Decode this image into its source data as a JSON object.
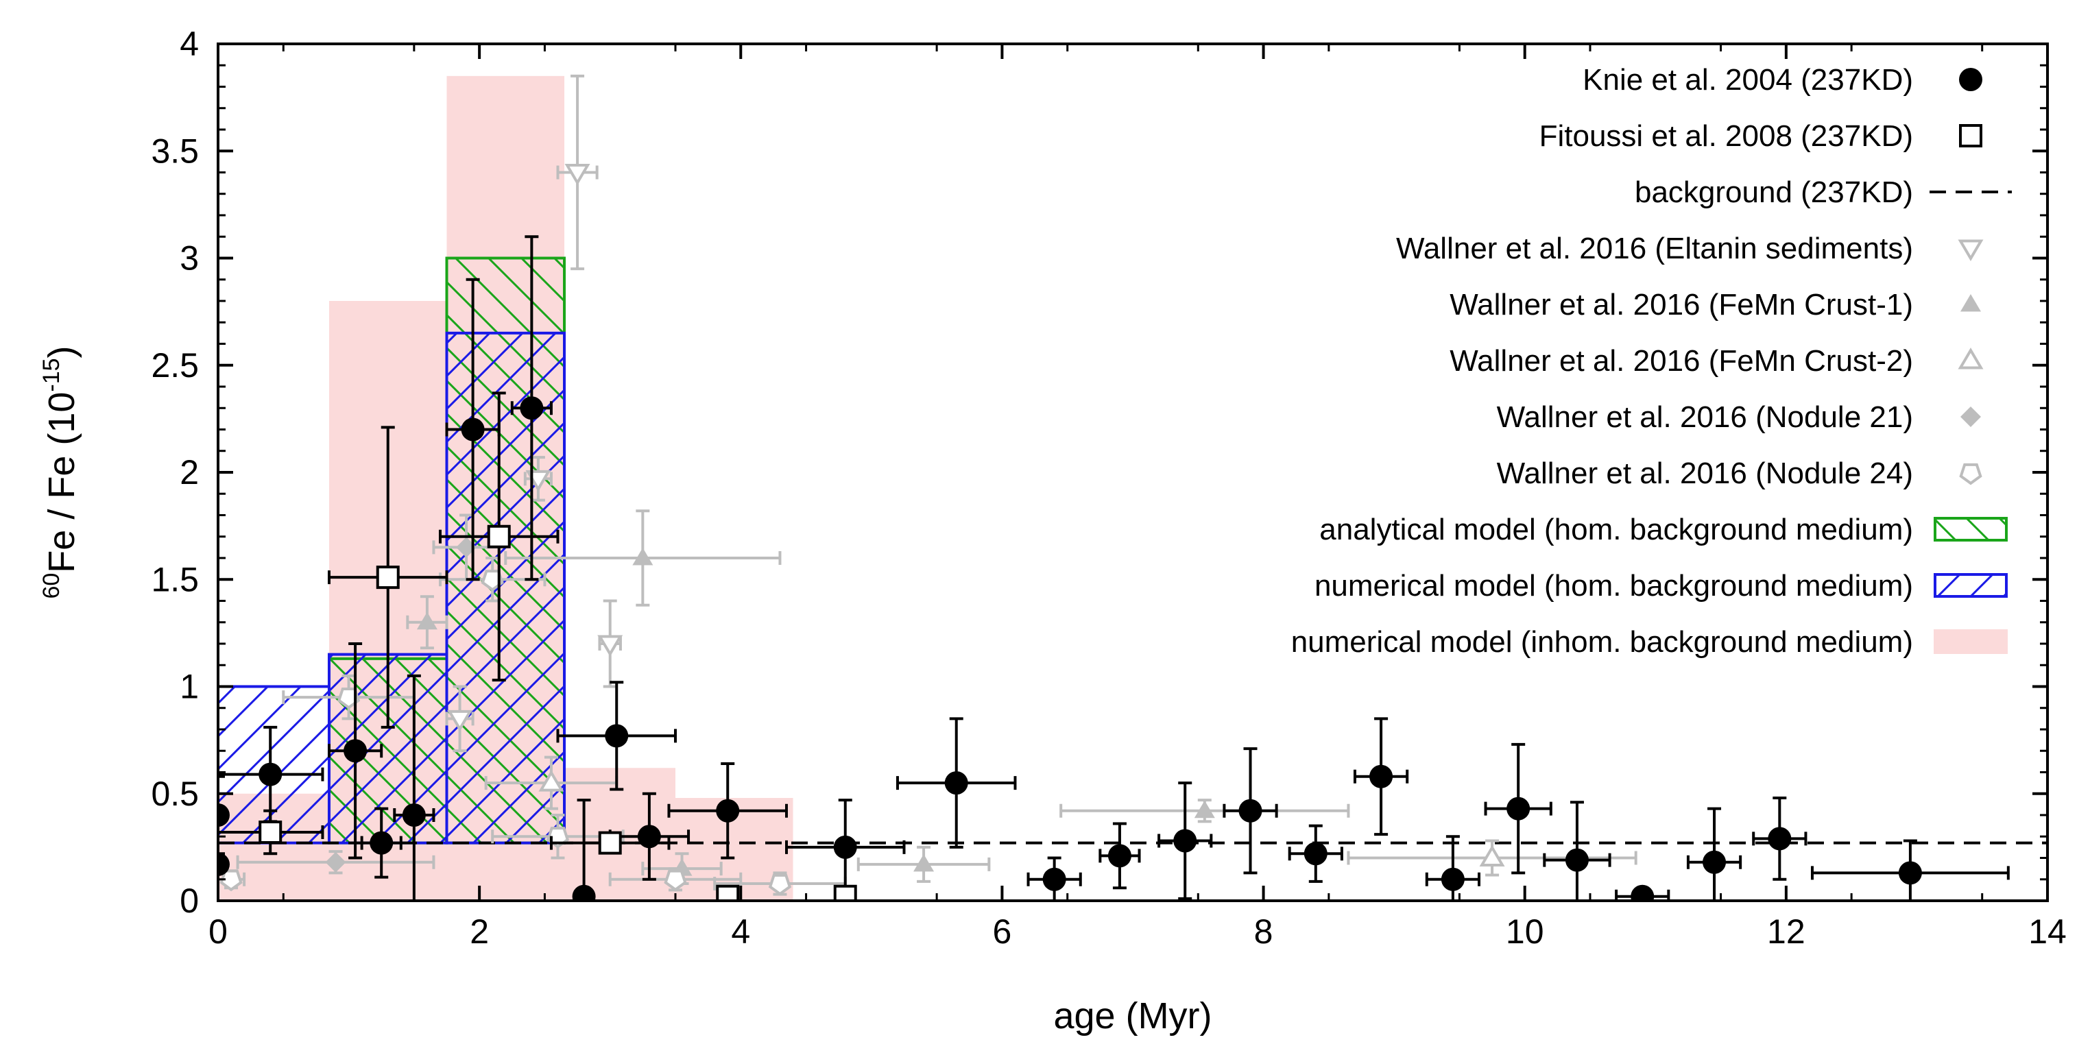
{
  "chart_data": {
    "type": "scatter",
    "xlabel": "age (Myr)",
    "ylabel": {
      "sup": "60",
      "main": "Fe / Fe (10",
      "exp": "-15",
      "close": ")"
    },
    "xlim": [
      0,
      14
    ],
    "ylim": [
      0,
      4
    ],
    "xticks": [
      0,
      2,
      4,
      6,
      8,
      10,
      12,
      14
    ],
    "xtick_labels": [
      "0",
      "2",
      "4",
      "6",
      "8",
      "10",
      "12",
      "14"
    ],
    "yticks": [
      0,
      0.5,
      1,
      1.5,
      2,
      2.5,
      3,
      3.5,
      4
    ],
    "ytick_labels": [
      "0",
      "0.5",
      "1",
      "1.5",
      "2",
      "2.5",
      "3",
      "3.5",
      "4"
    ],
    "grid": false,
    "legend_position": "top-right",
    "colors": {
      "black": "#000000",
      "gray": "#bdbdbd",
      "green": "#1aa51a",
      "blue": "#1a1ae6",
      "pink": "#fbdada"
    },
    "legend": [
      "Knie et al. 2004 (237KD)",
      "Fitoussi et al. 2008 (237KD)",
      "background (237KD)",
      "Wallner et al. 2016 (Eltanin sediments)",
      "Wallner et al. 2016 (FeMn Crust-1)",
      "Wallner et al. 2016 (FeMn Crust-2)",
      "Wallner et al. 2016 (Nodule 21)",
      "Wallner et al. 2016 (Nodule 24)",
      "analytical model (hom. background medium)",
      "numerical model (hom. background medium)",
      "numerical model (inhom. background medium)"
    ],
    "series": [
      {
        "name": "Knie et al. 2004 (237KD)",
        "marker": "filled-circle",
        "color": "black",
        "points": [
          {
            "x": 0.0,
            "y": 0.4,
            "xerr": 0,
            "yerr": 0.18
          },
          {
            "x": 0.0,
            "y": 0.17,
            "xerr": 0,
            "yerr": 0
          },
          {
            "x": 0.4,
            "y": 0.59,
            "xerr": 0.4,
            "yerr": 0.22
          },
          {
            "x": 1.05,
            "y": 0.7,
            "xerr": 0.2,
            "yerr": 0.5
          },
          {
            "x": 1.25,
            "y": 0.27,
            "xerr": 0.15,
            "yerr": 0.16
          },
          {
            "x": 1.5,
            "y": 0.4,
            "xerr": 0.15,
            "yerr": 0.65
          },
          {
            "x": 1.95,
            "y": 2.2,
            "xerr": 0.2,
            "yerr": 0.7
          },
          {
            "x": 2.4,
            "y": 2.3,
            "xerr": 0.15,
            "yerr": 0.8
          },
          {
            "x": 2.8,
            "y": 0.02,
            "xerr": 0,
            "yerr": 0.45
          },
          {
            "x": 3.05,
            "y": 0.77,
            "xerr": 0.45,
            "yerr": 0.25
          },
          {
            "x": 3.3,
            "y": 0.3,
            "xerr": 0.3,
            "yerr": 0.2
          },
          {
            "x": 3.9,
            "y": 0.42,
            "xerr": 0.45,
            "yerr": 0.22
          },
          {
            "x": 4.8,
            "y": 0.25,
            "xerr": 0.45,
            "yerr": 0.22
          },
          {
            "x": 5.65,
            "y": 0.55,
            "xerr": 0.45,
            "yerr": 0.3
          },
          {
            "x": 6.4,
            "y": 0.1,
            "xerr": 0.2,
            "yerr": 0.1
          },
          {
            "x": 6.9,
            "y": 0.21,
            "xerr": 0.15,
            "yerr": 0.15
          },
          {
            "x": 7.4,
            "y": 0.28,
            "xerr": 0.2,
            "yerr": 0.27
          },
          {
            "x": 7.9,
            "y": 0.42,
            "xerr": 0.2,
            "yerr": 0.29
          },
          {
            "x": 8.4,
            "y": 0.22,
            "xerr": 0.2,
            "yerr": 0.13
          },
          {
            "x": 8.9,
            "y": 0.58,
            "xerr": 0.2,
            "yerr": 0.27
          },
          {
            "x": 9.45,
            "y": 0.1,
            "xerr": 0.2,
            "yerr": 0.2
          },
          {
            "x": 9.95,
            "y": 0.43,
            "xerr": 0.25,
            "yerr": 0.3
          },
          {
            "x": 10.4,
            "y": 0.19,
            "xerr": 0.25,
            "yerr": 0.27
          },
          {
            "x": 10.9,
            "y": 0.02,
            "xerr": 0.2,
            "yerr": 0
          },
          {
            "x": 11.45,
            "y": 0.18,
            "xerr": 0.2,
            "yerr": 0.25
          },
          {
            "x": 11.95,
            "y": 0.29,
            "xerr": 0.2,
            "yerr": 0.19
          },
          {
            "x": 12.95,
            "y": 0.13,
            "xerr": 0.75,
            "yerr": 0.15
          }
        ]
      },
      {
        "name": "Fitoussi et al. 2008 (237KD)",
        "marker": "open-square",
        "color": "black",
        "points": [
          {
            "x": 0.4,
            "y": 0.32,
            "xerr": 0.4,
            "yerr": 0.1
          },
          {
            "x": 1.3,
            "y": 1.51,
            "xerr": 0.45,
            "yerr": 0.7
          },
          {
            "x": 2.15,
            "y": 1.7,
            "xerr": 0.45,
            "yerr": 0.67
          },
          {
            "x": 3.0,
            "y": 0.27,
            "xerr": 0.45,
            "yerr": 0
          },
          {
            "x": 3.9,
            "y": 0.02,
            "xerr": 0,
            "yerr": 0
          },
          {
            "x": 4.8,
            "y": 0.02,
            "xerr": 0,
            "yerr": 0
          }
        ]
      },
      {
        "name": "background (237KD)",
        "marker": "dashed-line",
        "color": "black",
        "y": 0.27
      },
      {
        "name": "Wallner et al. 2016 (Eltanin sediments)",
        "marker": "open-triangle-down",
        "color": "gray",
        "points": [
          {
            "x": 2.75,
            "y": 3.4,
            "xerr": 0.15,
            "yerr": 0.45
          },
          {
            "x": 2.45,
            "y": 1.97,
            "xerr": 0.1,
            "yerr": 0.1
          },
          {
            "x": 3.0,
            "y": 1.2,
            "xerr": 0.08,
            "yerr": 0.2
          },
          {
            "x": 1.85,
            "y": 0.85,
            "xerr": 0.1,
            "yerr": 0.15
          }
        ]
      },
      {
        "name": "Wallner et al. 2016 (FeMn Crust-1)",
        "marker": "filled-triangle-up",
        "color": "gray",
        "points": [
          {
            "x": 3.25,
            "y": 1.6,
            "xerr": 1.05,
            "yerr": 0.22
          },
          {
            "x": 1.6,
            "y": 1.3,
            "xerr": 0.15,
            "yerr": 0.12
          },
          {
            "x": 3.55,
            "y": 0.15,
            "xerr": 0.3,
            "yerr": 0.07
          },
          {
            "x": 5.4,
            "y": 0.17,
            "xerr": 0.5,
            "yerr": 0.08
          },
          {
            "x": 7.55,
            "y": 0.42,
            "xerr": 1.1,
            "yerr": 0.05
          }
        ]
      },
      {
        "name": "Wallner et al. 2016 (FeMn Crust-2)",
        "marker": "open-triangle-up",
        "color": "gray",
        "points": [
          {
            "x": 2.55,
            "y": 0.55,
            "xerr": 0.5,
            "yerr": 0.12
          },
          {
            "x": 9.75,
            "y": 0.2,
            "xerr": 1.1,
            "yerr": 0.08
          }
        ]
      },
      {
        "name": "Wallner et al. 2016 (Nodule 21)",
        "marker": "filled-diamond",
        "color": "gray",
        "points": [
          {
            "x": 0.9,
            "y": 0.18,
            "xerr": 0.75,
            "yerr": 0.05
          },
          {
            "x": 1.9,
            "y": 1.65,
            "xerr": 0.25,
            "yerr": 0.15
          }
        ]
      },
      {
        "name": "Wallner et al. 2016 (Nodule 24)",
        "marker": "open-pentagon",
        "color": "gray",
        "points": [
          {
            "x": 0.1,
            "y": 0.1,
            "xerr": 0.1,
            "yerr": 0.04
          },
          {
            "x": 1.0,
            "y": 0.95,
            "xerr": 0.5,
            "yerr": 0.1
          },
          {
            "x": 2.1,
            "y": 1.5,
            "xerr": 0.4,
            "yerr": 0.1
          },
          {
            "x": 2.6,
            "y": 0.3,
            "xerr": 0.5,
            "yerr": 0.1
          },
          {
            "x": 3.5,
            "y": 0.1,
            "xerr": 0.5,
            "yerr": 0.05
          },
          {
            "x": 4.3,
            "y": 0.08,
            "xerr": 0.5,
            "yerr": 0.05
          }
        ]
      }
    ],
    "histograms": [
      {
        "name": "numerical model (inhom. background medium)",
        "style": "filled",
        "color": "pink",
        "bins": [
          [
            0,
            0.85,
            0.5
          ],
          [
            0.85,
            1.75,
            2.8
          ],
          [
            1.75,
            2.65,
            3.85
          ],
          [
            2.65,
            3.5,
            0.62
          ],
          [
            3.5,
            4.4,
            0.48
          ]
        ]
      },
      {
        "name": "analytical model (hom. background medium)",
        "style": "hatch-backslash",
        "color": "green",
        "bins": [
          [
            0.85,
            1.75,
            1.13
          ],
          [
            1.75,
            2.65,
            3.0
          ]
        ]
      },
      {
        "name": "numerical model (hom. background medium)",
        "style": "hatch-slash",
        "color": "blue",
        "bins": [
          [
            0,
            0.85,
            1.0
          ],
          [
            0.85,
            1.75,
            1.15
          ],
          [
            1.75,
            2.65,
            2.65
          ]
        ]
      }
    ]
  }
}
